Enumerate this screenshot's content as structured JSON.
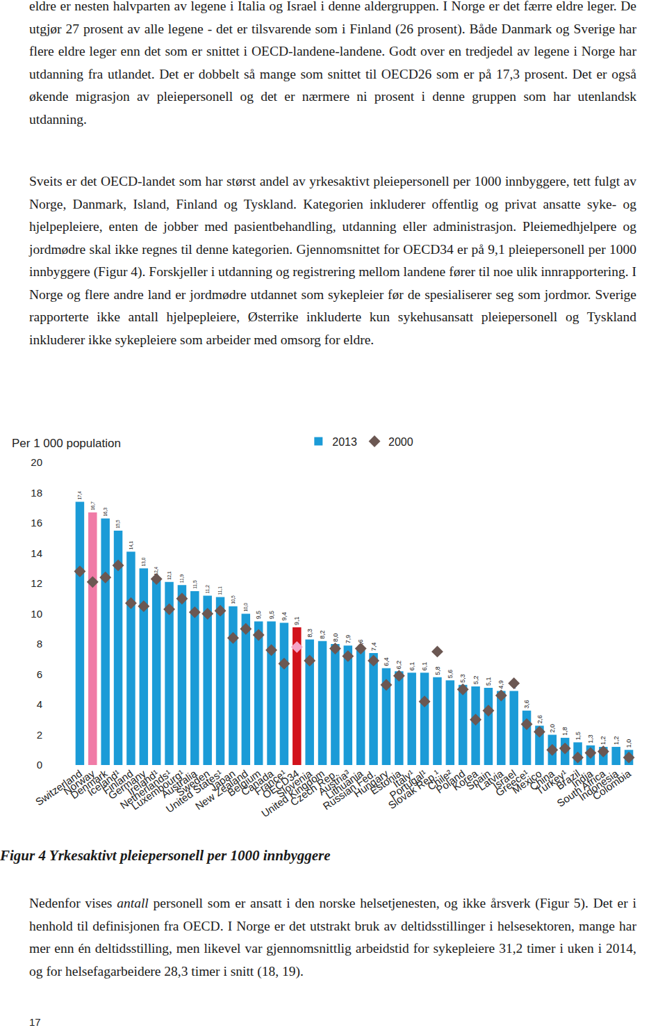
{
  "document": {
    "paragraphs_top": [
      [
        {
          "text": "eldre er nesten halvparten av legene i Italia og Israel i denne aldergruppen. I Norge er det færre eldre leger. De utgjør 27 prosent av alle legene - det er tilsvarende som i Finland (26 prosent). Både Danmark og Sverige har flere eldre leger enn det som er snittet i OECD-landene-landene. Godt over en tredjedel av legene i Norge har utdanning fra utlandet. Det er dobbelt så mange som snittet til OECD26 som er på 17,3 prosent. Det er også økende migrasjon av pleiepersonell og det er nærmere ni prosent i denne gruppen som har utenlandsk utdanning."
        }
      ],
      [
        {
          "text": "Sveits er det OECD-landet som har størst andel av yrkesaktivt pleiepersonell per 1000 innbyggere, tett fulgt av Norge, Danmark, Island, Finland og Tyskland. Kategorien inkluderer offentlig og privat ansatte syke- og hjelpepleiere, enten de jobber med pasientbehandling, utdanning eller administrasjon. Pleiemedhjelpere og jordmødre skal ikke regnes til denne kategorien. Gjennomsnittet for OECD34 er på 9,1 pleiepersonell per 1000 innbyggere (Figur 4). Forskjeller i utdanning og registrering mellom landene fører til noe ulik innrapportering. I Norge og flere andre land er jordmødre utdannet som sykepleier før de spesialiserer seg som jordmor. Sverige rapporterte ikke antall hjelpepleiere, Østerrike inkluderte kun sykehusansatt pleiepersonell og Tyskland inkluderer ikke sykepleiere som arbeider med omsorg for eldre."
        }
      ]
    ],
    "figure_caption": "Figur 4 Yrkesaktivt pleiepersonell per 1000 innbyggere",
    "paragraphs_bottom": [
      [
        {
          "text": "Nedenfor vises "
        },
        {
          "text": "antall",
          "italic": true
        },
        {
          "text": " personell som er ansatt i den norske helsetjenesten, og ikke årsverk (Figur 5). Det er i henhold til definisjonen fra OECD. I Norge er det utstrakt bruk av deltidsstillinger i helsesektoren, mange har mer enn én deltidsstilling, men likevel var gjennomsnittlig arbeidstid for sykepleiere 31,2 timer i uken i 2014, og for helsefagarbeidere 28,3 timer i snitt (18, 19)."
        }
      ]
    ],
    "page_number": "17"
  },
  "chart_data": {
    "type": "bar",
    "y_label": "Per 1 000 population",
    "categories": [
      "Switzerland",
      "Norway",
      "Denmark",
      "Iceland¹",
      "Finland",
      "Germany",
      "Ireland¹",
      "Netherlands¹",
      "Luxembourg¹",
      "Australia",
      "Sweden",
      "United States¹",
      "Japan",
      "New Zealand",
      "Belgium",
      "Canada",
      "France¹",
      "OECD34",
      "Slovenia",
      "United Kingdom",
      "Czech Rep.",
      "Austria³",
      "Lithuania",
      "Russian Fed.",
      "Hungary",
      "Estonia",
      "Italy¹",
      "Portugal¹",
      "Slovak Rep.¹",
      "Chile²",
      "Poland",
      "Korea",
      "Spain",
      "Latvia",
      "Israel",
      "Greece¹",
      "Mexico",
      "China",
      "Turkey¹",
      "Brazil",
      "India",
      "South Africa",
      "Indonesia",
      "Colombia"
    ],
    "series": [
      {
        "name": "2013",
        "type": "bar",
        "color": "#1b9bd7",
        "colors": [
          "#1b9bd7",
          "#f07ba6",
          "#1b9bd7",
          "#1b9bd7",
          "#1b9bd7",
          "#1b9bd7",
          "#1b9bd7",
          "#1b9bd7",
          "#1b9bd7",
          "#1b9bd7",
          "#1b9bd7",
          "#1b9bd7",
          "#1b9bd7",
          "#1b9bd7",
          "#1b9bd7",
          "#1b9bd7",
          "#1b9bd7",
          "#d2121b",
          "#1b9bd7",
          "#1b9bd7",
          "#1b9bd7",
          "#1b9bd7",
          "#1b9bd7",
          "#1b9bd7",
          "#1b9bd7",
          "#1b9bd7",
          "#1b9bd7",
          "#1b9bd7",
          "#1b9bd7",
          "#1b9bd7",
          "#1b9bd7",
          "#1b9bd7",
          "#1b9bd7",
          "#1b9bd7",
          "#1b9bd7",
          "#1b9bd7",
          "#1b9bd7",
          "#1b9bd7",
          "#1b9bd7",
          "#1b9bd7",
          "#1b9bd7",
          "#1b9bd7",
          "#1b9bd7",
          "#1b9bd7"
        ],
        "values": [
          17.4,
          16.7,
          16.3,
          15.5,
          14.1,
          13.0,
          12.4,
          12.1,
          11.9,
          11.5,
          11.2,
          11.1,
          10.5,
          10.0,
          9.5,
          9.5,
          9.4,
          9.1,
          8.3,
          8.2,
          8.0,
          7.9,
          7.6,
          7.4,
          6.4,
          6.2,
          6.1,
          6.1,
          5.8,
          5.6,
          5.3,
          5.2,
          5.1,
          4.9,
          4.9,
          3.6,
          2.6,
          2.0,
          1.8,
          1.5,
          1.3,
          1.2,
          1.2,
          1.0
        ],
        "value_labels": [
          "17,4",
          "16,7",
          "16,3",
          "15,5",
          "14,1",
          "13,0",
          "12,4",
          "12,1",
          "11,9",
          "11,5",
          "11,2",
          "11,1",
          "10,5",
          "10,0",
          "9,5",
          "9,5",
          "9,4",
          "9,1",
          "8,3",
          "8,2",
          "8,0",
          "7,9",
          "7,6",
          "7,4",
          "6,4",
          "6,2",
          "6,1",
          "6,1",
          "5,8",
          "5,6",
          "5,3",
          "5,2",
          "5,1",
          "4,9",
          "4,9",
          "3,6",
          "2,6",
          "2,0",
          "1,8",
          "1,5",
          "1,3",
          "1,2",
          "1,2",
          "1,0"
        ]
      },
      {
        "name": "2000",
        "type": "scatter",
        "marker": "diamond",
        "color": "#6b5752",
        "colors": [
          "#6b5752",
          "#6b5752",
          "#6b5752",
          "#6b5752",
          "#6b5752",
          "#6b5752",
          "#6b5752",
          "#6b5752",
          "#6b5752",
          "#6b5752",
          "#6b5752",
          "#6b5752",
          "#6b5752",
          "#6b5752",
          "#6b5752",
          "#6b5752",
          "#6b5752",
          "#f5a3c7",
          "#6b5752",
          "#6b5752",
          "#6b5752",
          "#6b5752",
          "#6b5752",
          "#6b5752",
          "#6b5752",
          "#6b5752",
          "#6b5752",
          "#6b5752",
          "#6b5752",
          "#6b5752",
          "#6b5752",
          "#6b5752",
          "#6b5752",
          "#6b5752",
          "#6b5752",
          "#6b5752",
          "#6b5752",
          "#6b5752",
          "#6b5752",
          "#6b5752",
          "#6b5752",
          "#6b5752",
          "#6b5752",
          "#6b5752"
        ],
        "values": [
          12.8,
          12.1,
          12.4,
          13.2,
          10.7,
          10.5,
          12.3,
          10.3,
          11.0,
          10.1,
          10.0,
          10.2,
          8.4,
          9.0,
          8.6,
          7.6,
          6.7,
          7.8,
          6.9,
          null,
          7.7,
          7.2,
          7.7,
          6.9,
          5.3,
          5.9,
          null,
          4.2,
          7.5,
          null,
          5.0,
          3.0,
          3.6,
          4.6,
          5.4,
          2.7,
          2.2,
          1.0,
          1.1,
          0.5,
          0.8,
          0.9,
          null,
          0.5
        ]
      }
    ],
    "ylim": [
      0,
      20
    ],
    "yticks": [
      0,
      2,
      4,
      6,
      8,
      10,
      12,
      14,
      16,
      18,
      20
    ],
    "grid": false,
    "legend": "top",
    "data_labels": true
  }
}
